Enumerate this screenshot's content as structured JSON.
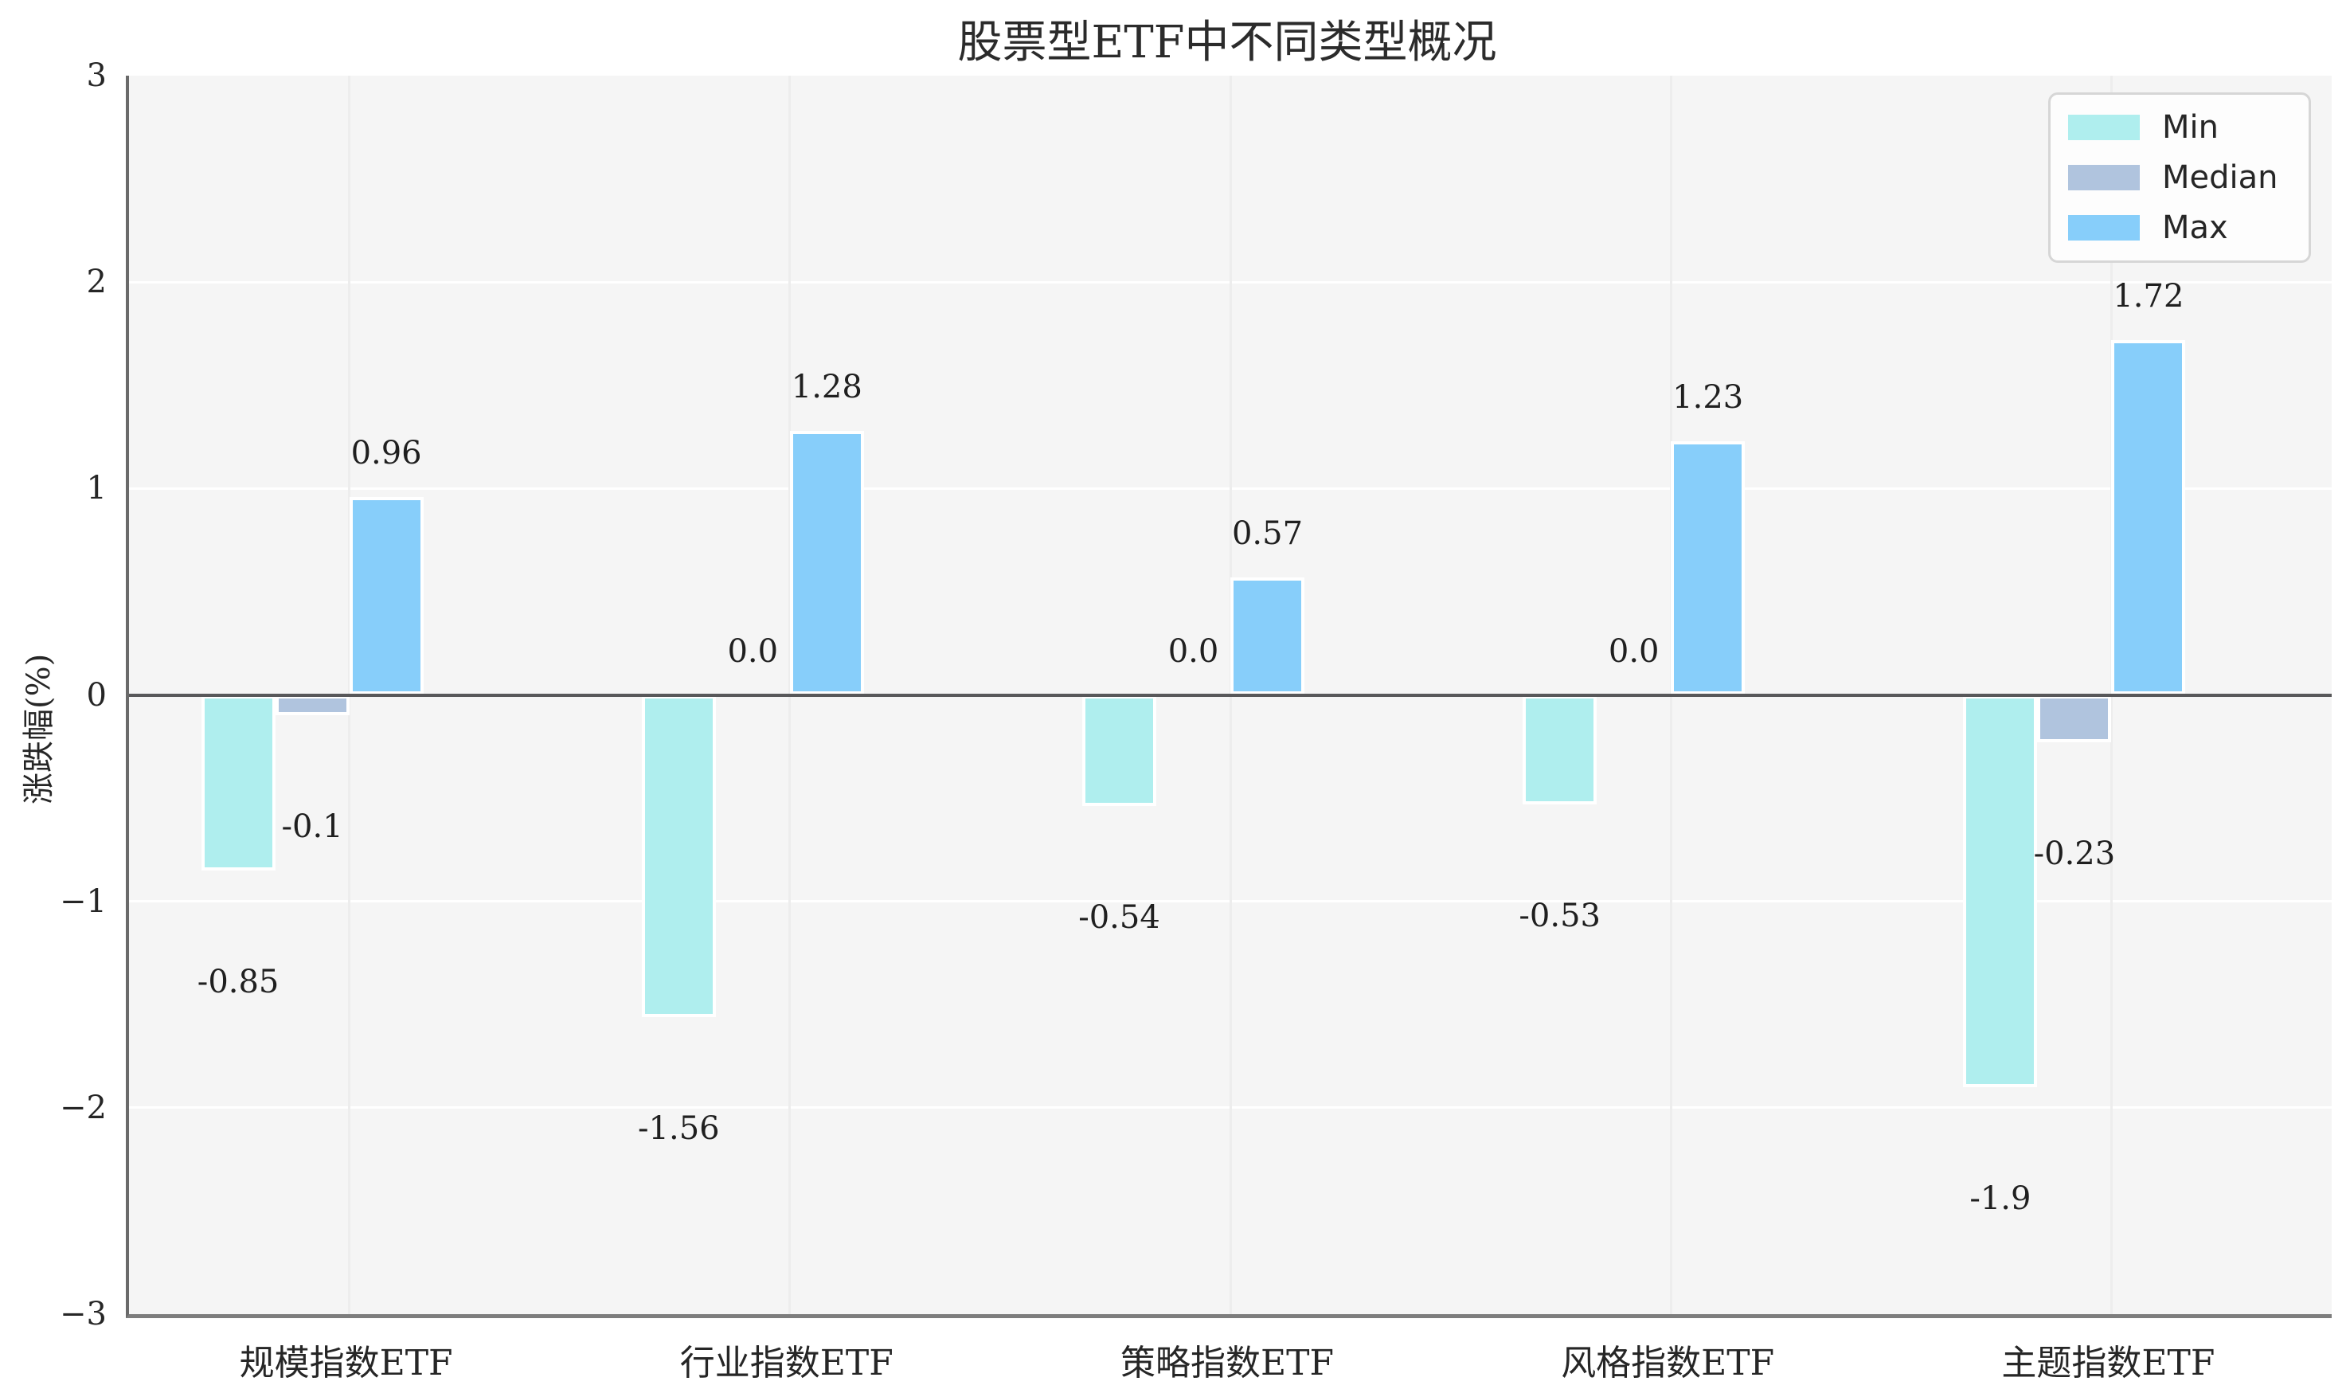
{
  "chart_data": {
    "type": "bar",
    "title": "股票型ETF中不同类型概况",
    "xlabel": "",
    "ylabel": "涨跌幅(%)",
    "ylim": [
      -3,
      3
    ],
    "yticks": [
      3,
      2,
      1,
      0,
      -1,
      -2,
      -3
    ],
    "ytick_labels": [
      "3",
      "2",
      "1",
      "0",
      "−1",
      "−2",
      "−3"
    ],
    "grid": true,
    "plot_background": "#f5f5f5",
    "gridline_color": "#ffffff",
    "zero_line_color": "#58585a",
    "legend_position": "upper right",
    "categories": [
      "规模指数ETF",
      "行业指数ETF",
      "策略指数ETF",
      "风格指数ETF",
      "主题指数ETF"
    ],
    "series": [
      {
        "name": "Min",
        "color": "#AFEEEE",
        "values": [
          -0.85,
          -1.56,
          -0.54,
          -0.53,
          -1.9
        ],
        "labels": [
          "-0.85",
          "-1.56",
          "-0.54",
          "-0.53",
          "-1.9"
        ]
      },
      {
        "name": "Median",
        "color": "#B0C4DE",
        "values": [
          -0.1,
          0.0,
          0.0,
          0.0,
          -0.23
        ],
        "labels": [
          "-0.1",
          "0.0",
          "0.0",
          "0.0",
          "-0.23"
        ]
      },
      {
        "name": "Max",
        "color": "#87CEFA",
        "values": [
          0.96,
          1.28,
          0.57,
          1.23,
          1.72
        ],
        "labels": [
          "0.96",
          "1.28",
          "0.57",
          "1.23",
          "1.72"
        ]
      }
    ]
  }
}
